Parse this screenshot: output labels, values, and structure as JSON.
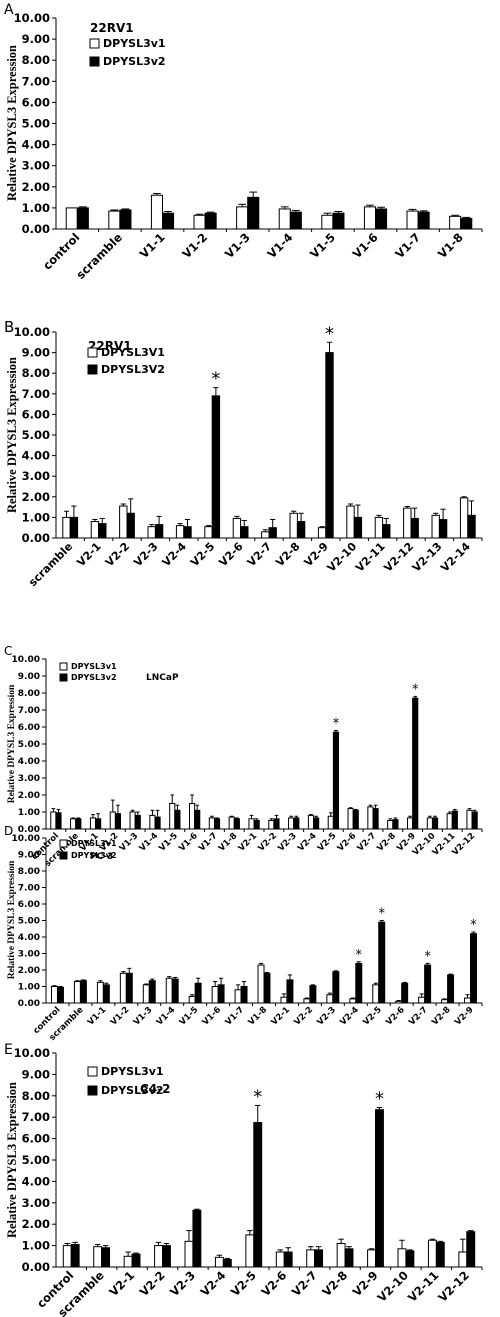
{
  "chart_data": [
    {
      "type": "bar",
      "panel": "A",
      "title": "22RV1",
      "ylabel": "Relative DPYSL3 Expression",
      "ylim": [
        0,
        10
      ],
      "yticks": [
        "0.00",
        "1.00",
        "2.00",
        "3.00",
        "4.00",
        "5.00",
        "6.00",
        "7.00",
        "8.00",
        "9.00",
        "10.00"
      ],
      "legend": [
        "DPYSL3v1",
        "DPYSL3v2"
      ],
      "categories": [
        "control",
        "scramble",
        "V1-1",
        "V1-2",
        "V1-3",
        "V1-4",
        "V1-5",
        "V1-6",
        "V1-7",
        "V1-8"
      ],
      "series": [
        {
          "name": "DPYSL3v1",
          "values": [
            1.0,
            0.85,
            1.6,
            0.65,
            1.05,
            0.95,
            0.65,
            1.05,
            0.85,
            0.6
          ],
          "errors": [
            0,
            0.05,
            0.08,
            0.05,
            0.12,
            0.1,
            0.1,
            0.08,
            0.08,
            0.05
          ]
        },
        {
          "name": "DPYSL3v2",
          "values": [
            1.0,
            0.9,
            0.75,
            0.75,
            1.5,
            0.8,
            0.75,
            0.95,
            0.8,
            0.5
          ],
          "errors": [
            0.05,
            0.05,
            0.08,
            0.05,
            0.25,
            0.08,
            0.08,
            0.08,
            0.06,
            0.05
          ]
        }
      ],
      "stars": []
    },
    {
      "type": "bar",
      "panel": "B",
      "title": "22RV1",
      "ylabel": "Relative DPYSL3 Expression",
      "ylim": [
        0,
        10
      ],
      "yticks": [
        "0.00",
        "1.00",
        "2.00",
        "3.00",
        "4.00",
        "5.00",
        "6.00",
        "7.00",
        "8.00",
        "9.00",
        "10.00"
      ],
      "legend": [
        "DPYSL3V1",
        "DPYSL3V2"
      ],
      "categories": [
        "scramble",
        "V2-1",
        "V2-2",
        "V2-3",
        "V2-4",
        "V2-5",
        "V2-6",
        "V2-7",
        "V2-8",
        "V2-9",
        "V2-10",
        "V2-11",
        "V2-12",
        "V2-13",
        "V2-14"
      ],
      "series": [
        {
          "name": "DPYSL3V1",
          "values": [
            1.0,
            0.8,
            1.55,
            0.55,
            0.6,
            0.55,
            0.95,
            0.3,
            1.2,
            0.5,
            1.55,
            1.0,
            1.45,
            1.1,
            1.95
          ],
          "errors": [
            0.3,
            0.1,
            0.1,
            0.1,
            0.1,
            0.05,
            0.1,
            0.1,
            0.1,
            0.05,
            0.1,
            0.1,
            0.08,
            0.1,
            0.05
          ]
        },
        {
          "name": "DPYSL3V2",
          "values": [
            1.0,
            0.7,
            1.2,
            0.65,
            0.55,
            6.9,
            0.55,
            0.5,
            0.8,
            9.0,
            1.0,
            0.65,
            0.95,
            0.9,
            1.1
          ],
          "errors": [
            0.55,
            0.25,
            0.7,
            0.4,
            0.35,
            0.4,
            0.3,
            0.4,
            0.4,
            0.5,
            0.6,
            0.3,
            0.5,
            0.5,
            0.7
          ]
        }
      ],
      "stars": [
        5,
        9
      ]
    },
    {
      "type": "bar",
      "panel": "C",
      "title": "LNCaP",
      "ylabel": "Relative DPYSL3 Expression",
      "ylim": [
        0,
        10
      ],
      "yticks": [
        "0.00",
        "1.00",
        "2.00",
        "3.00",
        "4.00",
        "5.00",
        "6.00",
        "7.00",
        "8.00",
        "9.00",
        "10.00"
      ],
      "legend": [
        "DPYSL3v1",
        "DPYSL3v2"
      ],
      "categories": [
        "control",
        "scramble",
        "V1-1",
        "V1-2",
        "V1-3",
        "V1-4",
        "V1-5",
        "V1-6",
        "V1-7",
        "V1-8",
        "V2-1",
        "V2-2",
        "V2-3",
        "V2-4",
        "V2-5",
        "V2-6",
        "V2-7",
        "V2-8",
        "V2-9",
        "V2-10",
        "V2-11",
        "V2-12"
      ],
      "series": [
        {
          "name": "DPYSL3v1",
          "values": [
            1.0,
            0.6,
            0.65,
            1.0,
            1.0,
            0.8,
            1.5,
            1.5,
            0.65,
            0.7,
            0.6,
            0.5,
            0.65,
            0.8,
            0.75,
            1.2,
            1.3,
            0.5,
            0.65,
            0.65,
            0.9,
            1.1
          ],
          "errors": [
            0.2,
            0.05,
            0.2,
            0.7,
            0.1,
            0.3,
            0.5,
            0.5,
            0.1,
            0.05,
            0.2,
            0.1,
            0.1,
            0.05,
            0.2,
            0.05,
            0.1,
            0.1,
            0.1,
            0.1,
            0.1,
            0.1
          ]
        },
        {
          "name": "DPYSL3v2",
          "values": [
            0.95,
            0.6,
            0.6,
            0.9,
            0.8,
            0.7,
            1.1,
            1.1,
            0.6,
            0.6,
            0.5,
            0.6,
            0.65,
            0.65,
            5.7,
            1.1,
            1.2,
            0.55,
            7.7,
            0.65,
            1.05,
            1.0
          ],
          "errors": [
            0.2,
            0.05,
            0.3,
            0.5,
            0.2,
            0.4,
            0.3,
            0.3,
            0.05,
            0.05,
            0.1,
            0.2,
            0.1,
            0.1,
            0.1,
            0.05,
            0.2,
            0.1,
            0.1,
            0.1,
            0.1,
            0.1
          ]
        }
      ],
      "stars": [
        14,
        18
      ]
    },
    {
      "type": "bar",
      "panel": "D",
      "title": "PC-3",
      "ylabel": "Relative DPYSL3 Expression",
      "ylim": [
        0,
        10
      ],
      "yticks": [
        "0.00",
        "1.00",
        "2.00",
        "3.00",
        "4.00",
        "5.00",
        "6.00",
        "7.00",
        "8.00",
        "9.00",
        "10.00"
      ],
      "legend": [
        "DPYSL3v1",
        "DPYSL3v2"
      ],
      "categories": [
        "control",
        "scramble",
        "V1-1",
        "V1-2",
        "V1-3",
        "V1-4",
        "V1-5",
        "V1-6",
        "V1-7",
        "V1-8",
        "V2-1",
        "V2-2",
        "V2-3",
        "V2-4",
        "V2-5",
        "V2-6",
        "V2-7",
        "V2-8",
        "V2-9"
      ],
      "series": [
        {
          "name": "DPYSL3v1",
          "values": [
            1.0,
            1.3,
            1.25,
            1.8,
            1.1,
            1.5,
            0.4,
            1.0,
            0.8,
            2.3,
            0.35,
            0.25,
            0.5,
            0.25,
            1.1,
            0.1,
            0.35,
            0.2,
            0.3
          ],
          "errors": [
            0.05,
            0.05,
            0.1,
            0.1,
            0.05,
            0.1,
            0.1,
            0.3,
            0.3,
            0.1,
            0.2,
            0.05,
            0.1,
            0.05,
            0.1,
            0.05,
            0.2,
            0.05,
            0.2
          ]
        },
        {
          "name": "DPYSL3v2",
          "values": [
            0.95,
            1.35,
            1.1,
            1.8,
            1.35,
            1.45,
            1.2,
            1.1,
            1.0,
            1.8,
            1.4,
            1.05,
            1.9,
            2.4,
            4.9,
            1.2,
            2.3,
            1.7,
            4.2
          ],
          "errors": [
            0.05,
            0.05,
            0.1,
            0.3,
            0.1,
            0.1,
            0.3,
            0.4,
            0.3,
            0.05,
            0.3,
            0.05,
            0.05,
            0.1,
            0.1,
            0.05,
            0.1,
            0.05,
            0.1
          ]
        }
      ],
      "stars": [
        13,
        14,
        16,
        18
      ]
    },
    {
      "type": "bar",
      "panel": "E",
      "title": "C4-2",
      "ylabel": "Relative DPYSL3 Expression",
      "ylim": [
        0,
        10
      ],
      "yticks": [
        "0.00",
        "1.00",
        "2.00",
        "3.00",
        "4.00",
        "5.00",
        "6.00",
        "7.00",
        "8.00",
        "9.00",
        "10.00"
      ],
      "legend": [
        "DPYSL3v1",
        "DPYSL3v2"
      ],
      "categories": [
        "control",
        "scramble",
        "V2-1",
        "V2-2",
        "V2-3",
        "V2-4",
        "V2-5",
        "V2-6",
        "V2-7",
        "V2-8",
        "V2-9",
        "V2-10",
        "V2-11",
        "V2-12"
      ],
      "series": [
        {
          "name": "DPYSL3v1",
          "values": [
            1.0,
            0.95,
            0.5,
            1.0,
            1.2,
            0.45,
            1.5,
            0.7,
            0.8,
            1.1,
            0.8,
            0.85,
            1.25,
            0.7
          ],
          "errors": [
            0.1,
            0.1,
            0.2,
            0.15,
            0.5,
            0.1,
            0.2,
            0.1,
            0.15,
            0.2,
            0.05,
            0.4,
            0.05,
            0.6
          ]
        },
        {
          "name": "DPYSL3v2",
          "values": [
            1.05,
            0.9,
            0.6,
            1.0,
            2.65,
            0.35,
            6.75,
            0.7,
            0.8,
            0.85,
            7.35,
            0.75,
            1.15,
            1.65
          ],
          "errors": [
            0.1,
            0.1,
            0.05,
            0.1,
            0.05,
            0.05,
            0.8,
            0.2,
            0.15,
            0.1,
            0.1,
            0.05,
            0.05,
            0.05
          ]
        }
      ],
      "stars": [
        6,
        10
      ]
    }
  ]
}
